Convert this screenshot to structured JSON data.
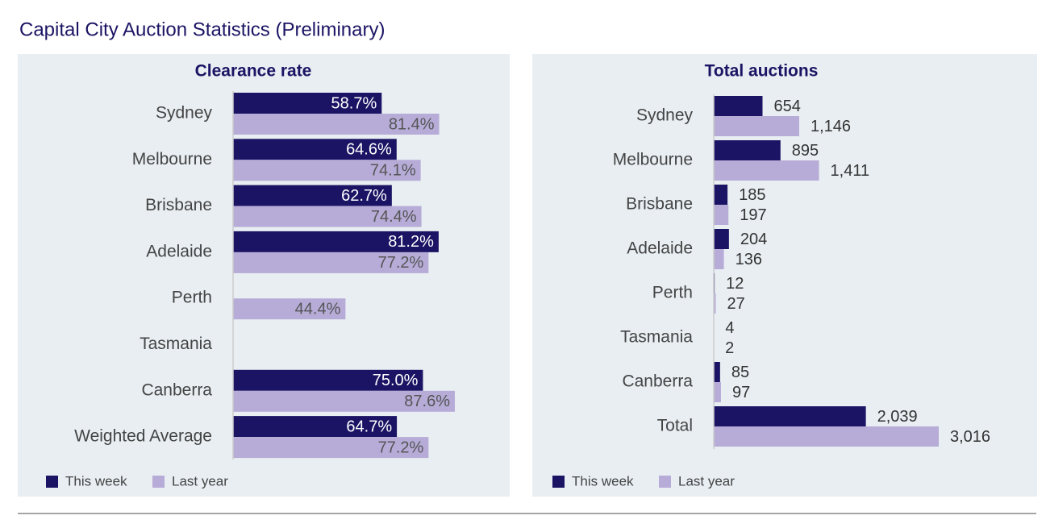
{
  "title": "Capital City Auction Statistics (Preliminary)",
  "chart_data": [
    {
      "type": "bar",
      "orientation": "horizontal",
      "title": "Clearance rate",
      "legend": "bottom-left",
      "label_position": "inside",
      "categories": [
        "Sydney",
        "Melbourne",
        "Brisbane",
        "Adelaide",
        "Perth",
        "Tasmania",
        "Canberra",
        "Weighted Average"
      ],
      "series": [
        {
          "name": "This week",
          "color": "#1b1464",
          "values": [
            58.7,
            64.6,
            62.7,
            81.2,
            null,
            null,
            75.0,
            64.7
          ],
          "value_labels": [
            "58.7%",
            "64.6%",
            "62.7%",
            "81.2%",
            null,
            null,
            "75.0%",
            "64.7%"
          ]
        },
        {
          "name": "Last year",
          "color": "#b7acd8",
          "values": [
            81.4,
            74.1,
            74.4,
            77.2,
            44.4,
            null,
            87.6,
            77.2
          ],
          "value_labels": [
            "81.4%",
            "74.1%",
            "74.4%",
            "77.2%",
            "44.4%",
            null,
            "87.6%",
            "77.2%"
          ]
        }
      ]
    },
    {
      "type": "bar",
      "orientation": "horizontal",
      "title": "Total auctions",
      "legend": "bottom-left",
      "label_position": "outside",
      "categories": [
        "Sydney",
        "Melbourne",
        "Brisbane",
        "Adelaide",
        "Perth",
        "Tasmania",
        "Canberra",
        "Total"
      ],
      "series": [
        {
          "name": "This week",
          "color": "#1b1464",
          "values": [
            654,
            895,
            185,
            204,
            12,
            4,
            85,
            2039
          ],
          "value_labels": [
            "654",
            "895",
            "185",
            "204",
            "12",
            "4",
            "85",
            "2,039"
          ]
        },
        {
          "name": "Last year",
          "color": "#b7acd8",
          "values": [
            1146,
            1411,
            197,
            136,
            27,
            2,
            97,
            3016
          ],
          "value_labels": [
            "1,146",
            "1,411",
            "197",
            "136",
            "27",
            "2",
            "97",
            "3,016"
          ]
        }
      ]
    }
  ]
}
